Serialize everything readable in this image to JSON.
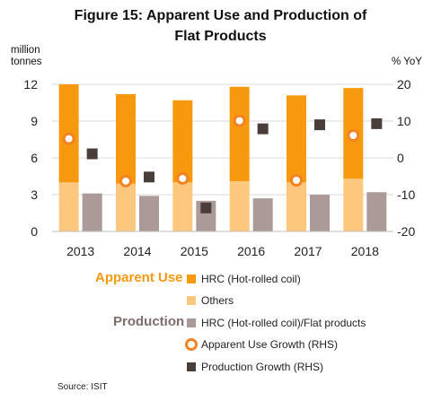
{
  "title_line1": "Figure 15: Apparent Use and Production of",
  "title_line2": "Flat Products",
  "source": "Source: ISIT",
  "colors": {
    "hrc": "#f7990f",
    "others": "#fdc77e",
    "production": "#ab9a97",
    "use_growth": "#f58220",
    "prod_growth": "#4a3e3a"
  },
  "legend": {
    "apparent_use_label": "Apparent Use",
    "production_label": "Production",
    "hrc": "HRC (Hot-rolled coil)",
    "others": "Others",
    "production_hrc": "HRC (Hot-rolled coil)/Flat products",
    "use_growth": "Apparent Use Growth (RHS)",
    "prod_growth": "Production Growth (RHS)"
  },
  "chart_data": {
    "type": "bar",
    "title": "Figure 15: Apparent Use and Production of Flat Products",
    "ylabel": "million tonnes",
    "y2label": "% YoY",
    "ylim": [
      0,
      12
    ],
    "y2lim": [
      -20,
      20
    ],
    "y_ticks": [
      0,
      3,
      6,
      9,
      12
    ],
    "y2_ticks": [
      -20,
      -10,
      0,
      10,
      20
    ],
    "categories": [
      "2013",
      "2014",
      "2015",
      "2016",
      "2017",
      "2018"
    ],
    "series": [
      {
        "name": "HRC (Hot-rolled coil)",
        "group": "Apparent Use",
        "stack": "apparent_use",
        "values": [
          8.0,
          7.3,
          6.7,
          7.7,
          7.1,
          7.4
        ]
      },
      {
        "name": "Others",
        "group": "Apparent Use",
        "stack": "apparent_use",
        "values": [
          4.0,
          3.9,
          4.0,
          4.1,
          4.0,
          4.3
        ]
      },
      {
        "name": "HRC (Hot-rolled coil)/Flat products",
        "group": "Production",
        "values": [
          3.1,
          2.9,
          2.5,
          2.7,
          3.0,
          3.2
        ]
      },
      {
        "name": "Apparent Use Growth (RHS)",
        "axis": "right",
        "type": "scatter",
        "values": [
          5.2,
          -6.3,
          -5.6,
          10.1,
          -6.1,
          6.1
        ]
      },
      {
        "name": "Production Growth (RHS)",
        "axis": "right",
        "type": "scatter",
        "values": [
          1.1,
          -5.2,
          -13.6,
          7.9,
          9.0,
          9.3
        ]
      }
    ],
    "legend_position": "bottom"
  }
}
